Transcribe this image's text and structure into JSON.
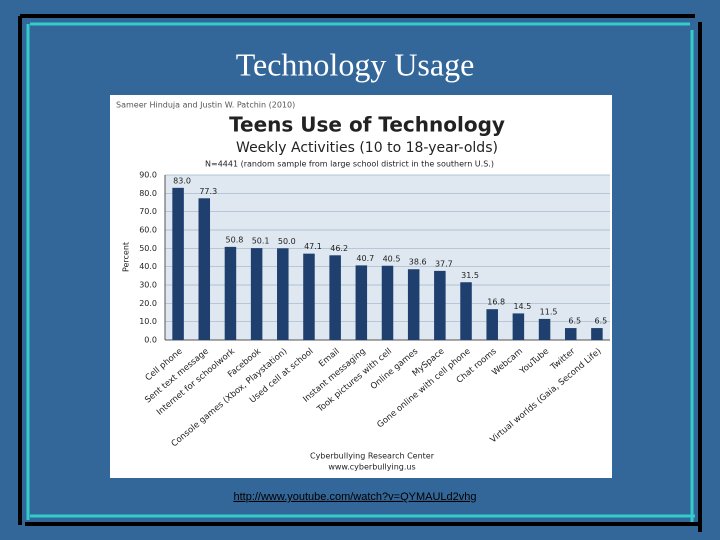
{
  "slide_title": "Technology Usage",
  "link": "http://www.youtube.com/watch?v=QYMAULd2vhg",
  "chart_data": {
    "type": "bar",
    "source": "Sameer Hinduja and Justin W. Patchin (2010)",
    "title": "Teens Use of Technology",
    "subtitle": "Weekly Activities (10 to 18-year-olds)",
    "note": "N=4441 (random sample from large school district in the southern U.S.)",
    "ylabel": "Percent",
    "footer": [
      "Cyberbullying Research Center",
      "www.cyberbullying.us"
    ],
    "categories": [
      "Cell phone",
      "Sent text message",
      "Internet for schoolwork",
      "Facebook",
      "Console games (Xbox, Playstation)",
      "Used cell at school",
      "Email",
      "Instant messaging",
      "Took pictures with cell",
      "Online games",
      "MySpace",
      "Gone online with cell phone",
      "Chat rooms",
      "Webcam",
      "YouTube",
      "Twitter",
      "Virtual worlds (Gaia, Second Life)"
    ],
    "values": [
      83.0,
      77.3,
      50.8,
      50.1,
      50.0,
      47.1,
      46.2,
      40.7,
      40.5,
      38.6,
      37.7,
      31.5,
      16.8,
      14.5,
      11.5,
      6.5,
      6.5
    ],
    "value_labels": [
      "83.0",
      "77.3",
      "50.8",
      "50.1",
      "50.0",
      "47.1",
      "46.2",
      "40.7",
      "40.5",
      "38.6",
      "37.7",
      "31.5",
      "16.8",
      "14.5",
      "11.5",
      "6.5",
      "6.5"
    ],
    "color": "#1f3f6f",
    "ylim": [
      0,
      90
    ],
    "yticks": [
      {
        "value": 0,
        "label": "0.0"
      },
      {
        "value": 10,
        "label": "10.0"
      },
      {
        "value": 20,
        "label": "20.0"
      },
      {
        "value": 30,
        "label": "30.0"
      },
      {
        "value": 40,
        "label": "40.0"
      },
      {
        "value": 50,
        "label": "50.0"
      },
      {
        "value": 60,
        "label": "60.0"
      },
      {
        "value": 70,
        "label": "70.0"
      },
      {
        "value": 80,
        "label": "80.0"
      },
      {
        "value": 90,
        "label": "90.0"
      }
    ],
    "grid": true
  }
}
